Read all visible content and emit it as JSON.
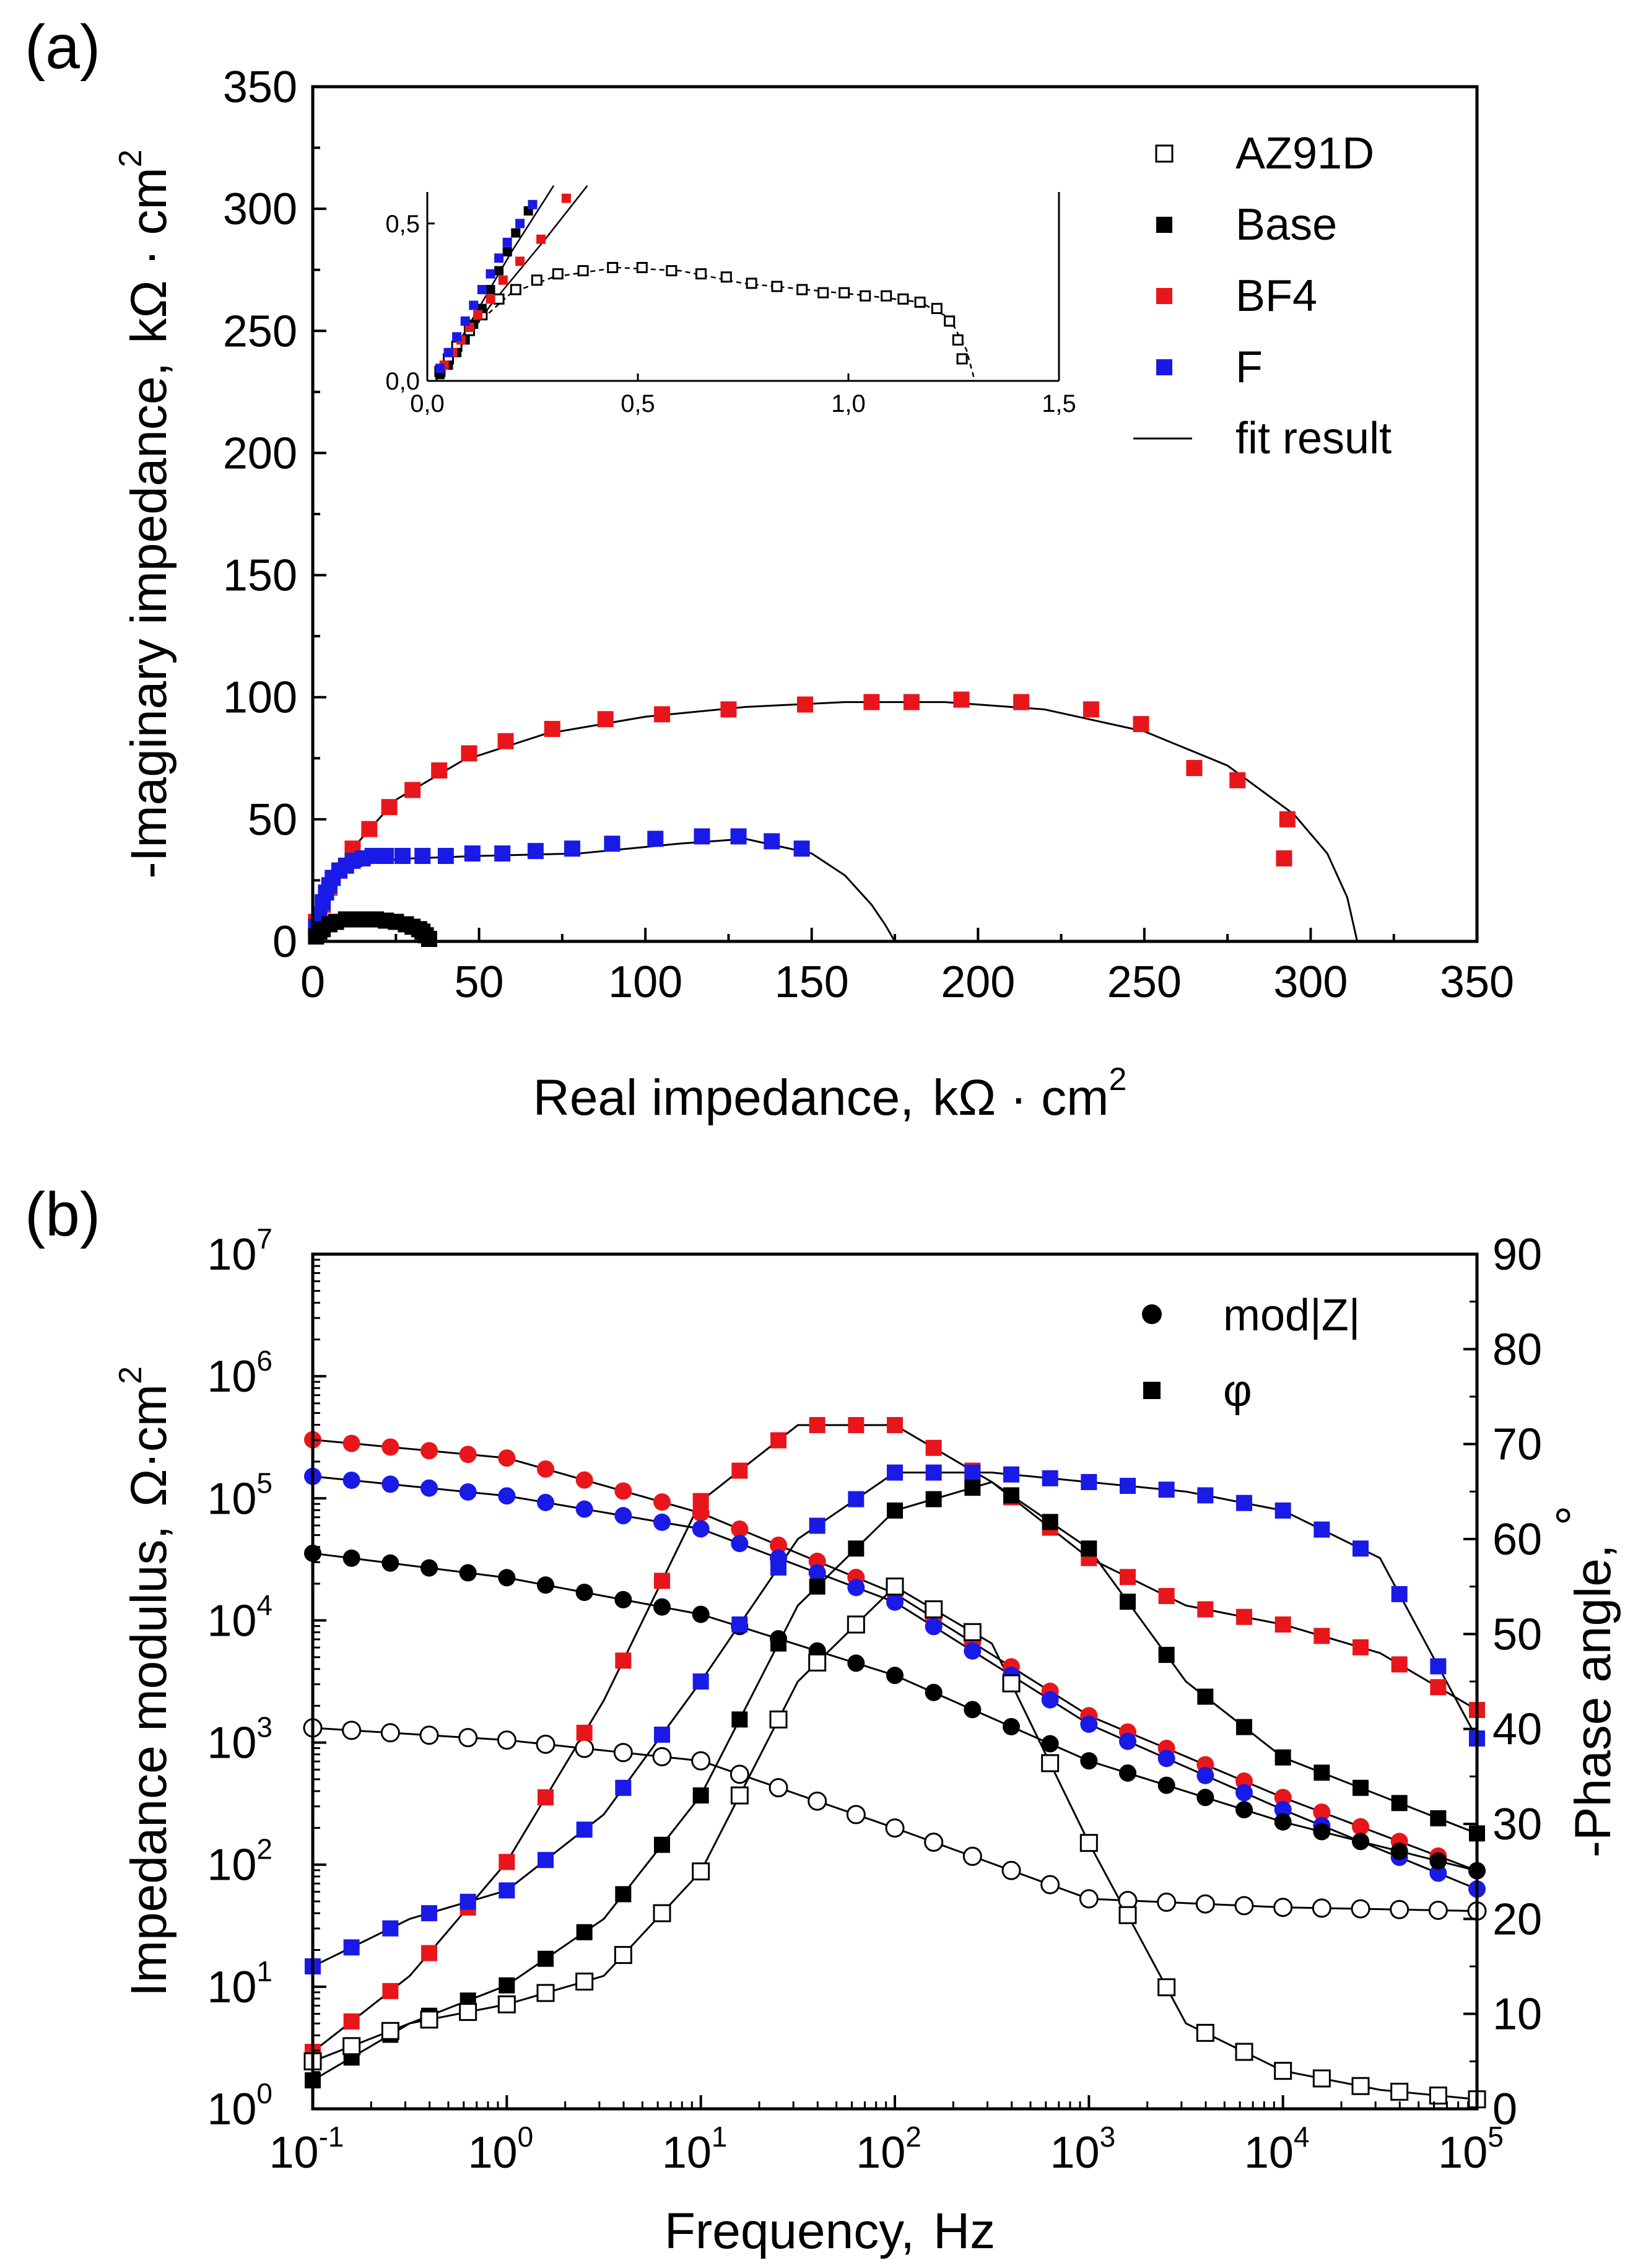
{
  "chart_data": [
    {
      "panel_label": "(a)",
      "type": "scatter",
      "title": "",
      "xlabel": "Real impedance,",
      "xunit": "kΩ · cm",
      "xunit_sup": "2",
      "ylabel": "-Imaginary impedance,",
      "yunit": "kΩ · cm",
      "yunit_sup": "2",
      "xlim": [
        0,
        350
      ],
      "ylim": [
        0,
        350
      ],
      "xticks": [
        0,
        50,
        100,
        150,
        200,
        250,
        300,
        350
      ],
      "yticks": [
        0,
        50,
        100,
        150,
        200,
        250,
        300,
        350
      ],
      "legend": {
        "position": "top-right",
        "entries": [
          {
            "label": "AZ91D",
            "marker": "square-open",
            "color": "#000000"
          },
          {
            "label": "Base",
            "marker": "square",
            "color": "#000000"
          },
          {
            "label": "BF4",
            "marker": "square",
            "color": "#e8161b"
          },
          {
            "label": "F",
            "marker": "square",
            "color": "#1a1ae6"
          },
          {
            "label": "fit result",
            "marker": "line",
            "color": "#000000"
          }
        ]
      },
      "series": [
        {
          "name": "BF4",
          "color": "#e8161b",
          "x": [
            1,
            3,
            5,
            8,
            12,
            17,
            23,
            30,
            38,
            47,
            58,
            72,
            88,
            105,
            125,
            148,
            168,
            180,
            195,
            213,
            234,
            249,
            265,
            278,
            293,
            292
          ],
          "y": [
            8,
            15,
            22,
            29,
            38,
            46,
            55,
            62,
            70,
            77,
            82,
            87,
            91,
            93,
            95,
            97,
            98,
            98,
            99,
            98,
            95,
            89,
            71,
            66,
            50,
            34
          ]
        },
        {
          "name": "F",
          "color": "#1a1ae6",
          "x": [
            1,
            2,
            3,
            4,
            5,
            6,
            8,
            10,
            12,
            15,
            18,
            22,
            27,
            33,
            40,
            48,
            57,
            67,
            78,
            90,
            103,
            117,
            128,
            138,
            147
          ],
          "y": [
            6,
            11,
            16,
            20,
            23,
            26,
            29,
            31,
            33,
            34,
            35,
            35,
            35,
            35,
            35,
            36,
            36,
            37,
            38,
            40,
            42,
            43,
            43,
            41,
            38
          ]
        },
        {
          "name": "Base",
          "color": "#000000",
          "x": [
            1,
            2,
            3,
            5,
            7,
            10,
            13,
            16,
            19,
            22,
            25,
            28,
            30,
            32,
            33,
            34,
            35
          ],
          "y": [
            2,
            4,
            5,
            7,
            8,
            9,
            9,
            9,
            9,
            8.5,
            8,
            7,
            6,
            5,
            4,
            2.5,
            1
          ]
        }
      ],
      "fits": [
        {
          "name": "BF4 fit",
          "x": [
            0,
            10,
            25,
            45,
            70,
            100,
            130,
            160,
            190,
            220,
            250,
            275,
            295,
            305,
            311,
            314
          ],
          "y": [
            0,
            35,
            58,
            74,
            85,
            92,
            96,
            98,
            98,
            95,
            86,
            72,
            52,
            36,
            18,
            0
          ]
        },
        {
          "name": "F fit",
          "x": [
            0,
            5,
            10,
            20,
            30,
            50,
            80,
            110,
            130,
            150,
            160,
            168,
            172,
            175
          ],
          "y": [
            0,
            22,
            29,
            33,
            34,
            35,
            36,
            40,
            42,
            36,
            27,
            15,
            7,
            0
          ]
        }
      ],
      "inset": {
        "xlim": [
          0,
          1.5
        ],
        "ylim": [
          0,
          0.6
        ],
        "xticks": [
          "0,0",
          "0,5",
          "1,0",
          "1,5"
        ],
        "yticks": [
          "0,0",
          "0,5"
        ],
        "series": [
          {
            "name": "AZ91D",
            "color": "#000000",
            "open": true,
            "x": [
              0.03,
              0.05,
              0.07,
              0.1,
              0.13,
              0.17,
              0.21,
              0.26,
              0.31,
              0.37,
              0.44,
              0.51,
              0.58,
              0.65,
              0.71,
              0.77,
              0.83,
              0.89,
              0.94,
              0.99,
              1.04,
              1.09,
              1.13,
              1.17,
              1.21,
              1.24,
              1.26,
              1.27
            ],
            "y": [
              0.03,
              0.07,
              0.11,
              0.16,
              0.21,
              0.26,
              0.29,
              0.32,
              0.34,
              0.35,
              0.36,
              0.36,
              0.35,
              0.34,
              0.33,
              0.31,
              0.3,
              0.29,
              0.28,
              0.28,
              0.27,
              0.27,
              0.26,
              0.25,
              0.23,
              0.19,
              0.13,
              0.07
            ]
          },
          {
            "name": "Base",
            "color": "#000000",
            "x": [
              0.03,
              0.05,
              0.07,
              0.09,
              0.11,
              0.13,
              0.15,
              0.17,
              0.19,
              0.21,
              0.24
            ],
            "y": [
              0.02,
              0.05,
              0.09,
              0.13,
              0.18,
              0.23,
              0.29,
              0.35,
              0.41,
              0.47,
              0.54
            ]
          },
          {
            "name": "BF4",
            "color": "#e8161b",
            "x": [
              0.04,
              0.06,
              0.08,
              0.1,
              0.12,
              0.15,
              0.18,
              0.22,
              0.27,
              0.33
            ],
            "y": [
              0.05,
              0.09,
              0.13,
              0.17,
              0.21,
              0.26,
              0.32,
              0.38,
              0.45,
              0.58
            ]
          },
          {
            "name": "F",
            "color": "#1a1ae6",
            "x": [
              0.03,
              0.05,
              0.07,
              0.09,
              0.11,
              0.13,
              0.15,
              0.17,
              0.19,
              0.22,
              0.25
            ],
            "y": [
              0.04,
              0.09,
              0.14,
              0.19,
              0.24,
              0.29,
              0.34,
              0.39,
              0.44,
              0.5,
              0.56
            ]
          }
        ],
        "fits": [
          {
            "name": "AZ91D fit",
            "dashed": true,
            "x": [
              0.02,
              0.05,
              0.1,
              0.2,
              0.3,
              0.45,
              0.6,
              0.75,
              0.9,
              1.05,
              1.17,
              1.24,
              1.28,
              1.3
            ],
            "y": [
              0,
              0.07,
              0.16,
              0.28,
              0.33,
              0.36,
              0.35,
              0.31,
              0.29,
              0.27,
              0.25,
              0.2,
              0.1,
              0
            ]
          },
          {
            "name": "steep fit 1",
            "dashed": false,
            "x": [
              0.02,
              0.1,
              0.2,
              0.3
            ],
            "y": [
              0,
              0.18,
              0.41,
              0.62
            ]
          },
          {
            "name": "steep fit 2",
            "dashed": false,
            "x": [
              0.02,
              0.15,
              0.28,
              0.38
            ],
            "y": [
              0,
              0.24,
              0.45,
              0.62
            ]
          }
        ]
      }
    },
    {
      "panel_label": "(b)",
      "type": "scatter",
      "title": "",
      "xlabel": "Frequency,",
      "xunit": "Hz",
      "ylabel": "Impedance modulus,",
      "yunit": "Ω·cm",
      "yunit_sup": "2",
      "y2label": "-Phase angle,",
      "y2unit": "°",
      "xscale": "log",
      "yscale": "log",
      "xlim_exp": [
        -1,
        5
      ],
      "ylim_exp": [
        0,
        7
      ],
      "y2lim": [
        0,
        90
      ],
      "xtick_exps": [
        "-1",
        "0",
        "1",
        "2",
        "3",
        "4",
        "5"
      ],
      "ytick_exps": [
        "0",
        "1",
        "2",
        "3",
        "4",
        "5",
        "6",
        "7"
      ],
      "y2ticks": [
        0,
        10,
        20,
        30,
        40,
        50,
        60,
        70,
        80,
        90
      ],
      "legend": {
        "position": "top-right",
        "entries": [
          {
            "label": "mod|Z|",
            "marker": "circle",
            "color": "#000000"
          },
          {
            "label": "φ",
            "marker": "square",
            "color": "#000000"
          }
        ]
      },
      "modulus_series": [
        {
          "name": "BF4",
          "color": "#e8161b",
          "logf": [
            -1,
            0,
            1,
            2,
            3,
            4,
            5
          ],
          "logz": [
            5.48,
            5.33,
            4.88,
            4.22,
            3.22,
            2.55,
            1.95
          ]
        },
        {
          "name": "F",
          "color": "#1a1ae6",
          "logf": [
            -1,
            0,
            1,
            2,
            3,
            4,
            5
          ],
          "logz": [
            5.18,
            5.02,
            4.75,
            4.15,
            3.15,
            2.45,
            1.8
          ]
        },
        {
          "name": "Base",
          "color": "#000000",
          "logf": [
            -1,
            0,
            1,
            2,
            3,
            4,
            5
          ],
          "logz": [
            4.55,
            4.35,
            4.05,
            3.55,
            2.85,
            2.35,
            1.95
          ]
        },
        {
          "name": "AZ91D",
          "color": "#000000",
          "open": true,
          "logf": [
            -1,
            0,
            1,
            2,
            3,
            4,
            5
          ],
          "logz": [
            3.12,
            3.02,
            2.85,
            2.3,
            1.72,
            1.65,
            1.62
          ]
        }
      ],
      "phase_series": [
        {
          "name": "BF4",
          "color": "#e8161b",
          "logf": [
            -1,
            -0.5,
            0,
            0.5,
            1,
            1.5,
            2,
            2.5,
            3,
            3.5,
            4,
            4.5,
            5
          ],
          "phase": [
            6,
            14,
            26,
            43,
            64,
            72,
            72,
            66,
            58,
            53,
            51,
            48,
            42
          ]
        },
        {
          "name": "F",
          "color": "#1a1ae6",
          "logf": [
            -1,
            -0.5,
            0,
            0.5,
            1,
            1.5,
            2,
            2.5,
            3,
            3.5,
            4,
            4.5,
            5
          ],
          "phase": [
            15,
            20,
            23,
            31,
            45,
            60,
            67,
            67,
            66,
            65,
            63,
            58,
            39
          ]
        },
        {
          "name": "Base",
          "color": "#000000",
          "logf": [
            -1,
            -0.5,
            0,
            0.5,
            1,
            1.5,
            2,
            2.5,
            3,
            3.5,
            4,
            4.5,
            5
          ],
          "phase": [
            3,
            9,
            13,
            20,
            33,
            53,
            63,
            66,
            59,
            45,
            37,
            33,
            29
          ]
        },
        {
          "name": "AZ91D",
          "color": "#000000",
          "open": true,
          "logf": [
            -1,
            -0.5,
            0,
            0.5,
            1,
            1.5,
            2,
            2.5,
            3,
            3.5,
            4,
            4.5,
            5
          ],
          "phase": [
            5,
            9,
            11,
            14,
            25,
            45,
            55,
            49,
            28,
            9,
            4,
            2,
            1
          ]
        }
      ]
    }
  ]
}
